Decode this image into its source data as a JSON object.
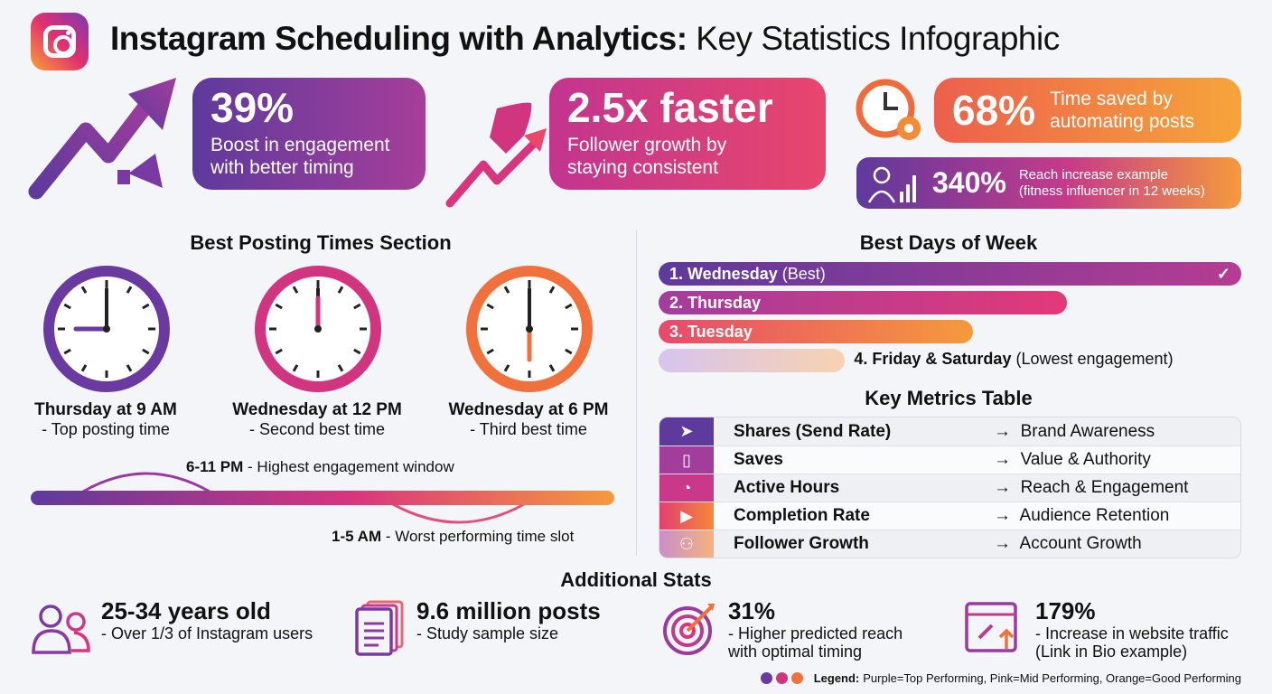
{
  "header": {
    "title_bold": "Instagram Scheduling with Analytics:",
    "title_rest": " Key Statistics Infographic",
    "logo_icon": "instagram-logo"
  },
  "top_stats": [
    {
      "value": "39%",
      "line1": "Boost in engagement",
      "line2": "with better timing",
      "icon": "growth-arrow-megaphone-icon"
    },
    {
      "value": "2.5x faster",
      "line1": "Follower growth by",
      "line2": "staying consistent",
      "icon": "rocket-arrow-icon"
    },
    {
      "value": "68%",
      "line1": "Time saved by",
      "line2": "automating posts",
      "icon": "clock-gear-icon"
    },
    {
      "value": "340%",
      "line1": "Reach increase example",
      "line2": "(fitness influencer in 12 weeks)",
      "icon": "person-chart-icon"
    }
  ],
  "posting_times": {
    "title": "Best Posting Times Section",
    "clocks": [
      {
        "label": "Thursday at 9 AM",
        "desc": "- Top posting time",
        "hour": 9,
        "minute": 0,
        "color": "#6a3aa0"
      },
      {
        "label": "Wednesday at 12 PM",
        "desc": "- Second best time",
        "hour": 12,
        "minute": 0,
        "color": "#d2357f"
      },
      {
        "label": "Wednesday at 6 PM",
        "desc": "- Third best time",
        "hour": 6,
        "minute": 0,
        "color": "#f0713c"
      }
    ],
    "window_high_bold": "6-11 PM",
    "window_high_text": " - Highest engagement window",
    "window_low_bold": "1-5 AM",
    "window_low_text": " - Worst performing time slot"
  },
  "best_days": {
    "title": "Best Days of Week",
    "days": [
      {
        "label": "1. Wednesday",
        "note": " (Best)",
        "relative": 1.0
      },
      {
        "label": "2. Thursday",
        "note": "",
        "relative": 0.7
      },
      {
        "label": "3. Tuesday",
        "note": "",
        "relative": 0.54
      },
      {
        "label": "4. Friday & Saturday",
        "note": " (Lowest engagement)",
        "relative": 0.32
      }
    ]
  },
  "metrics": {
    "title": "Key Metrics Table",
    "arrow": "→",
    "rows": [
      {
        "metric": "Shares (Send Rate)",
        "result": "Brand Awareness",
        "icon": "send-icon"
      },
      {
        "metric": "Saves",
        "result": "Value & Authority",
        "icon": "bookmark-icon"
      },
      {
        "metric": "Active Hours",
        "result": "Reach & Engagement",
        "icon": "clock-icon"
      },
      {
        "metric": "Completion Rate",
        "result": "Audience Retention",
        "icon": "play-replay-icon"
      },
      {
        "metric": "Follower Growth",
        "result": "Account Growth",
        "icon": "add-user-icon"
      }
    ]
  },
  "additional": {
    "title": "Additional Stats",
    "items": [
      {
        "value": "25-34 years old",
        "l1": "- Over 1/3 of Instagram users",
        "l2": "",
        "icon": "users-icon"
      },
      {
        "value": "9.6 million posts",
        "l1": "- Study sample size",
        "l2": "",
        "icon": "documents-icon"
      },
      {
        "value": "31%",
        "l1": "- Higher predicted reach",
        "l2": "with optimal timing",
        "icon": "target-icon"
      },
      {
        "value": "179%",
        "l1": "- Increase in website traffic",
        "l2": "(Link in Bio example)",
        "icon": "link-browser-icon"
      }
    ]
  },
  "legend": {
    "label": "Legend:",
    "text": " Purple=Top Performing, Pink=Mid Performing, Orange=Good Performing"
  },
  "colors": {
    "purple": "#5e3a9c",
    "magenta": "#a23d9c",
    "pink": "#d9357e",
    "orange": "#f59a3c"
  }
}
